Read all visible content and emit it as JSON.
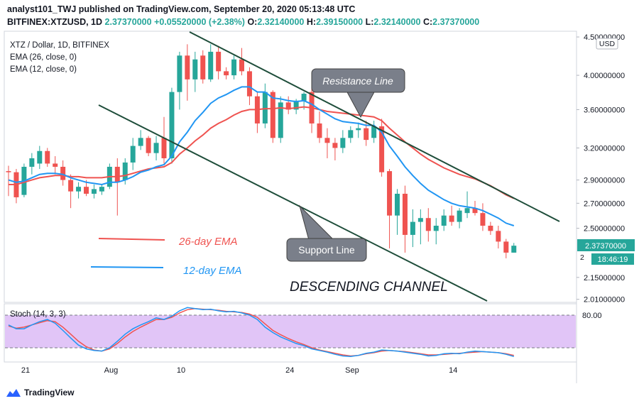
{
  "header": {
    "publish_line": "analyst101_TWJ published on TradingView.com, September 20, 2020 05:13:48 UTC",
    "symbol": "BITFINEX:XTZUSD, 1D",
    "last": "2.37370000",
    "change": "+0.05520000 (+2.38%)",
    "o_label": "O:",
    "open": "2.32140000",
    "h_label": "H:",
    "high": "2.39150000",
    "l_label": "L:",
    "low": "2.32140000",
    "c_label": "C:",
    "close": "2.37370000"
  },
  "legend": {
    "pair": "XTZ / Dollar, 1D, BITFINEX",
    "ema26": "EMA (26, close, 0)",
    "ema12": "EMA (12, close, 0)"
  },
  "annotations": {
    "resistance": "Resistance Line",
    "support": "Support Line",
    "ema26_label": "26-day EMA",
    "ema12_label": "12-day EMA",
    "channel": "DESCENDING CHANNEL"
  },
  "price_axis": {
    "currency": "USD",
    "ticks": [
      "4.50000000",
      "4.00000000",
      "3.60000000",
      "3.20000000",
      "2.90000000",
      "2.70000000",
      "2.50000000",
      "2.15000000",
      "2.01000000"
    ],
    "last_price_label": "2.37370000",
    "countdown": "18:46:19",
    "partial_label": "2"
  },
  "stoch": {
    "label": "Stoch (14, 3, 3)",
    "level_label": "80.00",
    "upper_band": 80,
    "lower_band": 20
  },
  "time_axis": {
    "labels": [
      {
        "text": "21",
        "day": 0
      },
      {
        "text": "Aug",
        "day": 11
      },
      {
        "text": "10",
        "day": 20
      },
      {
        "text": "24",
        "day": 34
      },
      {
        "text": "Sep",
        "day": 42
      },
      {
        "text": "14",
        "day": 55
      }
    ]
  },
  "footer": {
    "brand": "TradingView"
  },
  "colors": {
    "up": "#26a69a",
    "down": "#ef5350",
    "ema26": "#ef5350",
    "ema12": "#2196f3",
    "channel": "#1e4d3a",
    "stoch_k": "#2196f3",
    "stoch_d": "#ef5350",
    "stoch_fill": "#e1c5f7"
  },
  "chart_data": {
    "type": "candlestick",
    "title": "XTZ / Dollar, 1D, BITFINEX",
    "x_unit": "day index (0 = July 21, 2020)",
    "y_scale": "log",
    "ylim": [
      2.0,
      4.55
    ],
    "candles": [
      {
        "o": 2.98,
        "h": 3.03,
        "l": 2.76,
        "c": 2.97
      },
      {
        "o": 2.97,
        "h": 3.0,
        "l": 2.7,
        "c": 2.75
      },
      {
        "o": 2.77,
        "h": 3.05,
        "l": 2.75,
        "c": 3.02
      },
      {
        "o": 3.02,
        "h": 3.15,
        "l": 2.95,
        "c": 3.1
      },
      {
        "o": 3.05,
        "h": 3.22,
        "l": 3.0,
        "c": 3.17
      },
      {
        "o": 3.17,
        "h": 3.2,
        "l": 3.02,
        "c": 3.05
      },
      {
        "o": 3.05,
        "h": 3.12,
        "l": 2.95,
        "c": 3.02
      },
      {
        "o": 3.02,
        "h": 3.08,
        "l": 2.85,
        "c": 2.9
      },
      {
        "o": 2.9,
        "h": 2.95,
        "l": 2.66,
        "c": 2.8
      },
      {
        "o": 2.8,
        "h": 2.88,
        "l": 2.74,
        "c": 2.84
      },
      {
        "o": 2.84,
        "h": 2.9,
        "l": 2.76,
        "c": 2.78
      },
      {
        "o": 2.78,
        "h": 2.86,
        "l": 2.74,
        "c": 2.82
      },
      {
        "o": 2.8,
        "h": 2.86,
        "l": 2.77,
        "c": 2.84
      },
      {
        "o": 2.84,
        "h": 3.05,
        "l": 2.82,
        "c": 3.02
      },
      {
        "o": 3.02,
        "h": 3.1,
        "l": 2.6,
        "c": 2.88
      },
      {
        "o": 2.9,
        "h": 3.1,
        "l": 2.86,
        "c": 3.06
      },
      {
        "o": 3.06,
        "h": 3.3,
        "l": 2.99,
        "c": 3.22
      },
      {
        "o": 3.22,
        "h": 3.38,
        "l": 3.18,
        "c": 3.3
      },
      {
        "o": 3.3,
        "h": 3.32,
        "l": 3.12,
        "c": 3.15
      },
      {
        "o": 3.15,
        "h": 3.32,
        "l": 3.08,
        "c": 3.25
      },
      {
        "o": 3.3,
        "h": 3.52,
        "l": 3.05,
        "c": 3.1
      },
      {
        "o": 3.1,
        "h": 3.85,
        "l": 3.05,
        "c": 3.8
      },
      {
        "o": 3.8,
        "h": 4.3,
        "l": 3.6,
        "c": 4.25
      },
      {
        "o": 4.25,
        "h": 4.4,
        "l": 3.7,
        "c": 3.95
      },
      {
        "o": 3.95,
        "h": 4.3,
        "l": 3.8,
        "c": 4.2
      },
      {
        "o": 4.25,
        "h": 4.32,
        "l": 3.9,
        "c": 3.95
      },
      {
        "o": 3.95,
        "h": 4.4,
        "l": 3.92,
        "c": 4.3
      },
      {
        "o": 4.3,
        "h": 4.38,
        "l": 3.95,
        "c": 4.05
      },
      {
        "o": 4.05,
        "h": 4.1,
        "l": 3.95,
        "c": 4.0
      },
      {
        "o": 4.0,
        "h": 4.25,
        "l": 3.95,
        "c": 4.2
      },
      {
        "o": 4.2,
        "h": 4.35,
        "l": 4.0,
        "c": 4.05
      },
      {
        "o": 4.05,
        "h": 4.1,
        "l": 3.65,
        "c": 3.75
      },
      {
        "o": 3.75,
        "h": 3.8,
        "l": 3.35,
        "c": 3.45
      },
      {
        "o": 3.45,
        "h": 3.9,
        "l": 3.4,
        "c": 3.8
      },
      {
        "o": 3.8,
        "h": 3.82,
        "l": 3.25,
        "c": 3.3
      },
      {
        "o": 3.3,
        "h": 3.75,
        "l": 3.25,
        "c": 3.68
      },
      {
        "o": 3.68,
        "h": 3.75,
        "l": 3.55,
        "c": 3.6
      },
      {
        "o": 3.6,
        "h": 3.72,
        "l": 3.55,
        "c": 3.7
      },
      {
        "o": 3.7,
        "h": 3.8,
        "l": 3.6,
        "c": 3.78
      },
      {
        "o": 3.8,
        "h": 3.85,
        "l": 3.35,
        "c": 3.45
      },
      {
        "o": 3.45,
        "h": 3.58,
        "l": 3.25,
        "c": 3.3
      },
      {
        "o": 3.3,
        "h": 3.4,
        "l": 3.1,
        "c": 3.25
      },
      {
        "o": 3.25,
        "h": 3.3,
        "l": 3.08,
        "c": 3.2
      },
      {
        "o": 3.2,
        "h": 3.38,
        "l": 3.15,
        "c": 3.3
      },
      {
        "o": 3.3,
        "h": 3.42,
        "l": 3.25,
        "c": 3.38
      },
      {
        "o": 3.38,
        "h": 3.46,
        "l": 3.3,
        "c": 3.4
      },
      {
        "o": 3.4,
        "h": 3.48,
        "l": 3.22,
        "c": 3.28
      },
      {
        "o": 3.3,
        "h": 3.48,
        "l": 3.25,
        "c": 3.42
      },
      {
        "o": 3.42,
        "h": 3.5,
        "l": 2.93,
        "c": 2.97
      },
      {
        "o": 2.98,
        "h": 3.0,
        "l": 2.35,
        "c": 2.6
      },
      {
        "o": 2.6,
        "h": 2.82,
        "l": 2.45,
        "c": 2.78
      },
      {
        "o": 2.78,
        "h": 2.85,
        "l": 2.32,
        "c": 2.45
      },
      {
        "o": 2.45,
        "h": 2.65,
        "l": 2.36,
        "c": 2.55
      },
      {
        "o": 2.55,
        "h": 2.65,
        "l": 2.38,
        "c": 2.58
      },
      {
        "o": 2.58,
        "h": 2.66,
        "l": 2.4,
        "c": 2.48
      },
      {
        "o": 2.48,
        "h": 2.58,
        "l": 2.38,
        "c": 2.52
      },
      {
        "o": 2.52,
        "h": 2.65,
        "l": 2.48,
        "c": 2.6
      },
      {
        "o": 2.6,
        "h": 2.68,
        "l": 2.52,
        "c": 2.55
      },
      {
        "o": 2.55,
        "h": 2.66,
        "l": 2.5,
        "c": 2.64
      },
      {
        "o": 2.62,
        "h": 2.8,
        "l": 2.58,
        "c": 2.66
      },
      {
        "o": 2.66,
        "h": 2.72,
        "l": 2.6,
        "c": 2.62
      },
      {
        "o": 2.62,
        "h": 2.7,
        "l": 2.48,
        "c": 2.52
      },
      {
        "o": 2.52,
        "h": 2.55,
        "l": 2.45,
        "c": 2.48
      },
      {
        "o": 2.48,
        "h": 2.52,
        "l": 2.35,
        "c": 2.4
      },
      {
        "o": 2.4,
        "h": 2.42,
        "l": 2.28,
        "c": 2.32
      },
      {
        "o": 2.32,
        "h": 2.39,
        "l": 2.32,
        "c": 2.37
      }
    ],
    "ema26": [
      2.86,
      2.86,
      2.88,
      2.9,
      2.92,
      2.93,
      2.94,
      2.94,
      2.93,
      2.93,
      2.92,
      2.92,
      2.92,
      2.93,
      2.93,
      2.94,
      2.96,
      2.98,
      3.0,
      3.01,
      3.02,
      3.06,
      3.14,
      3.2,
      3.27,
      3.33,
      3.4,
      3.45,
      3.49,
      3.54,
      3.58,
      3.6,
      3.6,
      3.61,
      3.61,
      3.62,
      3.61,
      3.62,
      3.63,
      3.62,
      3.6,
      3.58,
      3.57,
      3.56,
      3.55,
      3.54,
      3.53,
      3.52,
      3.48,
      3.4,
      3.33,
      3.26,
      3.2,
      3.14,
      3.09,
      3.05,
      3.01,
      2.98,
      2.95,
      2.93,
      2.91,
      2.88,
      2.85,
      2.81,
      2.77,
      2.74
    ],
    "ema12": [
      2.9,
      2.88,
      2.89,
      2.92,
      2.95,
      2.96,
      2.96,
      2.95,
      2.92,
      2.9,
      2.88,
      2.87,
      2.86,
      2.88,
      2.88,
      2.9,
      2.93,
      2.97,
      2.99,
      3.02,
      3.04,
      3.12,
      3.26,
      3.36,
      3.48,
      3.57,
      3.67,
      3.73,
      3.77,
      3.82,
      3.86,
      3.86,
      3.8,
      3.8,
      3.73,
      3.72,
      3.7,
      3.69,
      3.7,
      3.66,
      3.6,
      3.55,
      3.5,
      3.47,
      3.46,
      3.45,
      3.43,
      3.43,
      3.36,
      3.22,
      3.12,
      3.02,
      2.94,
      2.87,
      2.81,
      2.77,
      2.73,
      2.7,
      2.68,
      2.67,
      2.66,
      2.64,
      2.61,
      2.58,
      2.54,
      2.52
    ],
    "stoch_k": [
      62,
      55,
      55,
      62,
      68,
      72,
      65,
      52,
      38,
      25,
      18,
      15,
      14,
      20,
      32,
      45,
      55,
      62,
      68,
      75,
      72,
      78,
      88,
      94,
      92,
      90,
      91,
      88,
      86,
      87,
      84,
      80,
      72,
      58,
      48,
      40,
      34,
      28,
      24,
      18,
      15,
      12,
      8,
      5,
      4,
      6,
      10,
      12,
      16,
      15,
      14,
      12,
      10,
      8,
      5,
      6,
      9,
      10,
      9,
      12,
      14,
      13,
      12,
      11,
      8,
      4
    ],
    "stoch_d": [
      60,
      56,
      58,
      62,
      66,
      70,
      68,
      58,
      45,
      32,
      22,
      16,
      14,
      18,
      28,
      40,
      50,
      58,
      65,
      72,
      72,
      76,
      84,
      90,
      92,
      91,
      90,
      89,
      87,
      86,
      85,
      82,
      76,
      64,
      52,
      44,
      37,
      31,
      26,
      20,
      16,
      13,
      10,
      7,
      5,
      6,
      9,
      11,
      14,
      15,
      14,
      13,
      11,
      9,
      7,
      7,
      8,
      9,
      10,
      11,
      12,
      13,
      12,
      11,
      9,
      6
    ]
  }
}
